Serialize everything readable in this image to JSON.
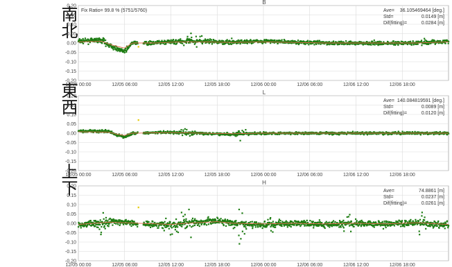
{
  "side_labels": [
    "南北",
    "東西",
    "上下"
  ],
  "chart_data": [
    {
      "type": "scatter",
      "title": "B",
      "annotation_left": "Fix Ratio= 99.8 % (5751/5760)",
      "stats": [
        "Ave=  36.105469464 [deg.]",
        "Std=            0.0149 [m]",
        "Dif(fitting)= 0.0284 [m]"
      ],
      "yticks": [
        "0.20",
        "0.15",
        "0.10",
        "0.05",
        "0.00",
        "-0.05",
        "-0.10",
        "-0.15",
        "-0.20"
      ],
      "ylim": [
        -0.2,
        0.2
      ],
      "xticks": [
        "12/05 00:00",
        "12/05 06:00",
        "12/05 12:00",
        "12/05 18:00",
        "12/06 00:00",
        "12/06 06:00",
        "12/06 12:00",
        "12/06 18:00"
      ],
      "x_hours": [
        0,
        48
      ],
      "color": "#1e7d14",
      "fit_color": "#e06a4b",
      "noise": 0.011,
      "spikes": [
        [
          3.5,
          0.025
        ],
        [
          14.4,
          0.05
        ],
        [
          15.5,
          0.035
        ],
        [
          19.5,
          0.02
        ],
        [
          39.0,
          0.015
        ],
        [
          45.0,
          0.015
        ]
      ],
      "trend": [
        [
          0,
          0.01
        ],
        [
          3,
          0.015
        ],
        [
          4,
          -0.01
        ],
        [
          5,
          -0.03
        ],
        [
          6,
          -0.045
        ],
        [
          7,
          0.0
        ],
        [
          10,
          0.0
        ],
        [
          13,
          0.01
        ],
        [
          16,
          0.01
        ],
        [
          20,
          0.005
        ],
        [
          24,
          0.01
        ],
        [
          28,
          0.005
        ],
        [
          32,
          0.0
        ],
        [
          36,
          0.0
        ],
        [
          40,
          0.0
        ],
        [
          44,
          0.0
        ],
        [
          48,
          0.01
        ]
      ],
      "gap": [
        7.7,
        8.4
      ],
      "yellow_points": [
        [
          7.8,
          -0.02
        ]
      ]
    },
    {
      "type": "scatter",
      "title": "L",
      "stats": [
        "Ave= 140.084819591 [deg.]",
        "Std=            0.0089 [m]",
        "Dif(fitting)= 0.0120 [m]"
      ],
      "yticks": [
        "0.20",
        "0.15",
        "0.10",
        "0.05",
        "0.00",
        "-0.05",
        "-0.10",
        "-0.15",
        "-0.20"
      ],
      "ylim": [
        -0.2,
        0.2
      ],
      "xticks": [
        "12/05 00:00",
        "12/05 06:00",
        "12/05 12:00",
        "12/05 18:00",
        "12/06 00:00",
        "12/06 06:00",
        "12/06 12:00",
        "12/06 18:00"
      ],
      "x_hours": [
        0,
        48
      ],
      "color": "#1e7d14",
      "fit_color": "#e06a4b",
      "noise": 0.007,
      "spikes": [
        [
          14.0,
          0.03
        ],
        [
          21.0,
          0.03
        ],
        [
          21.3,
          0.035
        ]
      ],
      "trend": [
        [
          0,
          0.012
        ],
        [
          3,
          0.01
        ],
        [
          4,
          0.008
        ],
        [
          5,
          -0.01
        ],
        [
          6,
          -0.02
        ],
        [
          7,
          0.0
        ],
        [
          12,
          0.005
        ],
        [
          16,
          0.0
        ],
        [
          20,
          -0.005
        ],
        [
          24,
          0.0
        ],
        [
          30,
          0.0
        ],
        [
          36,
          0.0
        ],
        [
          42,
          0.0
        ],
        [
          48,
          0.0
        ]
      ],
      "gap": [
        7.7,
        8.4
      ],
      "yellow_points": [
        [
          7.8,
          0.07
        ]
      ]
    },
    {
      "type": "scatter",
      "title": "H",
      "stats": [
        "Ave=          74.8861 [m]",
        "Std=            0.0237 [m]",
        "Dif(fitting)= 0.0261 [m]"
      ],
      "yticks": [
        "0.20",
        "0.15",
        "0.10",
        "0.05",
        "0.00",
        "-0.05",
        "-0.10",
        "-0.15",
        "-0.20"
      ],
      "ylim": [
        -0.2,
        0.2
      ],
      "xticks": [
        "12/05 00:00",
        "12/05 06:00",
        "12/05 12:00",
        "12/05 18:00",
        "12/06 00:00",
        "12/06 06:00",
        "12/06 12:00",
        "12/06 18:00"
      ],
      "x_hours": [
        0,
        48
      ],
      "color": "#1e7d14",
      "fit_color": "#e06a4b",
      "noise": 0.018,
      "spikes": [
        [
          3.0,
          0.06
        ],
        [
          12.0,
          0.09
        ],
        [
          13.5,
          0.1
        ],
        [
          14.5,
          0.08
        ],
        [
          21.0,
          0.12
        ],
        [
          25.0,
          0.05
        ],
        [
          35.0,
          0.07
        ],
        [
          44.5,
          0.06
        ]
      ],
      "trend": [
        [
          0,
          -0.01
        ],
        [
          4,
          0.01
        ],
        [
          8,
          0.0
        ],
        [
          12,
          -0.01
        ],
        [
          14,
          0.0
        ],
        [
          18,
          0.015
        ],
        [
          20,
          0.0
        ],
        [
          24,
          -0.005
        ],
        [
          28,
          0.0
        ],
        [
          32,
          -0.005
        ],
        [
          36,
          0.0
        ],
        [
          40,
          -0.005
        ],
        [
          44,
          0.005
        ],
        [
          48,
          -0.01
        ]
      ],
      "gap": [
        7.7,
        8.4
      ],
      "yellow_points": [
        [
          7.8,
          0.085
        ]
      ]
    }
  ]
}
